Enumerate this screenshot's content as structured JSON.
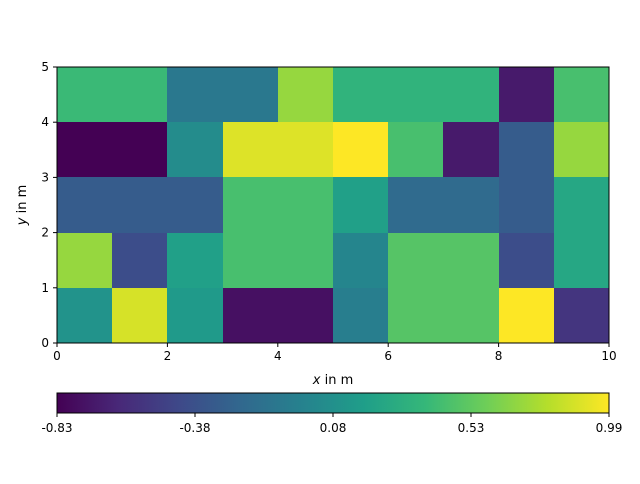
{
  "chart_data": {
    "type": "heatmap",
    "title": "",
    "xlabel_var": "x",
    "xlabel_rest": " in m",
    "ylabel_var": "y",
    "ylabel_rest": " in m",
    "xlim": [
      0,
      10
    ],
    "ylim": [
      0,
      5
    ],
    "xticks": [
      "0",
      "2",
      "4",
      "6",
      "8",
      "10"
    ],
    "yticks": [
      "0",
      "1",
      "2",
      "3",
      "4",
      "5"
    ],
    "grid": false,
    "colormap": "viridis",
    "colorbar": {
      "orientation": "horizontal",
      "placement": "bottom",
      "min": -0.83,
      "max": 0.99,
      "ticks": [
        "-0.83",
        "-0.38",
        "0.08",
        "0.53",
        "0.99"
      ]
    },
    "rows_top_to_bottom": [
      [
        0.4,
        0.4,
        -0.1,
        -0.1,
        0.7,
        0.35,
        0.35,
        0.35,
        -0.7,
        0.45
      ],
      [
        -0.83,
        -0.83,
        0.05,
        0.9,
        0.9,
        0.99,
        0.45,
        -0.7,
        -0.3,
        0.7
      ],
      [
        -0.3,
        -0.3,
        -0.3,
        0.45,
        0.45,
        0.2,
        -0.2,
        -0.2,
        -0.3,
        0.25
      ],
      [
        0.7,
        -0.4,
        0.2,
        0.45,
        0.45,
        0.0,
        0.5,
        0.5,
        -0.4,
        0.25
      ],
      [
        0.1,
        0.88,
        0.15,
        -0.75,
        -0.75,
        -0.05,
        0.5,
        0.5,
        0.99,
        -0.55
      ]
    ]
  }
}
